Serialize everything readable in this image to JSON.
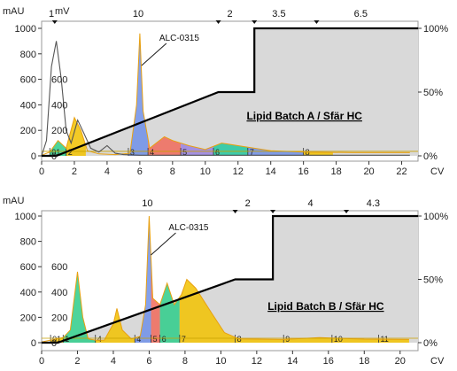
{
  "chart_data": [
    {
      "type": "area",
      "title": "Lipid Batch A / Sfär HC",
      "x_unit": "CV",
      "left_unit": "mAU",
      "left_ticks": [
        0,
        200,
        400,
        600,
        800,
        1000
      ],
      "mv_unit": "mV",
      "mv_ticks": [
        0,
        200,
        400,
        600
      ],
      "right_unit_ticks": [
        "0%",
        "50%",
        "100%"
      ],
      "x_ticks": [
        0,
        2,
        4,
        6,
        8,
        10,
        12,
        14,
        16,
        18,
        20,
        22
      ],
      "xlim": [
        0,
        23
      ],
      "ylim": [
        0,
        1000
      ],
      "top_labels": [
        {
          "text": "1",
          "x": 0.6
        },
        {
          "text": "10",
          "x": 5.9
        },
        {
          "text": "2",
          "x": 11.5
        },
        {
          "text": "3.5",
          "x": 14.5
        },
        {
          "text": "6.5",
          "x": 19.5
        }
      ],
      "top_markers": [
        0.8,
        10.8,
        13.0,
        16.8
      ],
      "peak_annotation": {
        "text": "ALC-0315",
        "x": 6.0
      },
      "gradient": [
        [
          0,
          0
        ],
        [
          0.9,
          0
        ],
        [
          10.8,
          50
        ],
        [
          13.0,
          50
        ],
        [
          13.0,
          100
        ],
        [
          23,
          100
        ]
      ],
      "fractions": [
        {
          "label": "01",
          "start": 0.5,
          "end": 1.5,
          "color": "#2ecc8a"
        },
        {
          "label": "2",
          "start": 1.5,
          "end": 2.7,
          "color": "#f2c200"
        },
        {
          "label": "3",
          "start": 5.3,
          "end": 6.5,
          "color": "#6f8fe8"
        },
        {
          "label": "4",
          "start": 6.5,
          "end": 8.5,
          "color": "#f06a5a"
        },
        {
          "label": "5",
          "start": 8.5,
          "end": 10.5,
          "color": "#9a82e2"
        },
        {
          "label": "6",
          "start": 10.5,
          "end": 12.6,
          "color": "#21c8a0"
        },
        {
          "label": "7",
          "start": 12.6,
          "end": 16.0,
          "color": "#6f8fe8"
        },
        {
          "label": "8",
          "start": 16.0,
          "end": 17.8,
          "color": "#f2c200"
        }
      ],
      "uv_trace": [
        [
          0,
          5
        ],
        [
          0.5,
          30
        ],
        [
          1.0,
          120
        ],
        [
          1.5,
          60
        ],
        [
          2.0,
          300
        ],
        [
          2.4,
          200
        ],
        [
          2.8,
          40
        ],
        [
          3.5,
          15
        ],
        [
          4.5,
          10
        ],
        [
          5.4,
          20
        ],
        [
          5.8,
          400
        ],
        [
          6.0,
          960
        ],
        [
          6.2,
          350
        ],
        [
          6.6,
          60
        ],
        [
          7.0,
          100
        ],
        [
          7.5,
          150
        ],
        [
          8.0,
          120
        ],
        [
          9.0,
          80
        ],
        [
          10.0,
          50
        ],
        [
          11.0,
          100
        ],
        [
          12.0,
          80
        ],
        [
          13.0,
          60
        ],
        [
          14.0,
          40
        ],
        [
          16.0,
          30
        ],
        [
          19.0,
          25
        ],
        [
          22.5,
          25
        ]
      ],
      "mv_trace": [
        [
          0,
          0
        ],
        [
          0.3,
          120
        ],
        [
          0.6,
          700
        ],
        [
          0.9,
          900
        ],
        [
          1.2,
          600
        ],
        [
          1.5,
          200
        ],
        [
          1.8,
          100
        ],
        [
          2.2,
          280
        ],
        [
          2.5,
          200
        ],
        [
          3.0,
          60
        ],
        [
          3.5,
          30
        ],
        [
          4.0,
          80
        ],
        [
          4.5,
          20
        ],
        [
          5.0,
          10
        ],
        [
          6.0,
          5
        ],
        [
          22.5,
          5
        ]
      ]
    },
    {
      "type": "area",
      "title": "Lipid Batch B / Sfär HC",
      "x_unit": "CV",
      "left_unit": "mAU",
      "left_ticks": [
        0,
        200,
        400,
        600,
        800,
        1000
      ],
      "mv_ticks": [
        0,
        200,
        400,
        600
      ],
      "right_unit_ticks": [
        "0%",
        "50%",
        "100%"
      ],
      "x_ticks": [
        0,
        2,
        4,
        6,
        8,
        10,
        12,
        14,
        16,
        18,
        20
      ],
      "xlim": [
        0,
        21
      ],
      "ylim": [
        0,
        1000
      ],
      "top_labels": [
        {
          "text": "10",
          "x": 5.9
        },
        {
          "text": "2",
          "x": 11.5
        },
        {
          "text": "4",
          "x": 15.0
        },
        {
          "text": "4.3",
          "x": 18.5
        }
      ],
      "top_markers": [
        10.8,
        12.9,
        17.0
      ],
      "peak_annotation": {
        "text": "ALC-0315",
        "x": 6.0
      },
      "gradient": [
        [
          0,
          0
        ],
        [
          0.9,
          0
        ],
        [
          10.8,
          50
        ],
        [
          12.9,
          50
        ],
        [
          12.9,
          100
        ],
        [
          21,
          100
        ]
      ],
      "fractions": [
        {
          "label": "01",
          "start": 0.5,
          "end": 1.2,
          "color": "#f2c200"
        },
        {
          "label": "1",
          "start": 1.2,
          "end": 3.0,
          "color": "#2ecc8a"
        },
        {
          "label": "4",
          "start": 3.0,
          "end": 5.2,
          "color": "#f2c200"
        },
        {
          "label": "4",
          "start": 5.2,
          "end": 6.1,
          "color": "#6f8fe8"
        },
        {
          "label": "5",
          "start": 6.1,
          "end": 6.6,
          "color": "#f06a5a"
        },
        {
          "label": "6",
          "start": 6.6,
          "end": 7.7,
          "color": "#2ecc8a"
        },
        {
          "label": "7",
          "start": 7.7,
          "end": 10.8,
          "color": "#f2c200"
        },
        {
          "label": "8",
          "start": 10.8,
          "end": 13.5,
          "color": "#f2c200"
        },
        {
          "label": "9",
          "start": 13.5,
          "end": 16.2,
          "color": "#f2c200"
        },
        {
          "label": "10",
          "start": 16.2,
          "end": 18.8,
          "color": "#f2c200"
        },
        {
          "label": "11",
          "start": 18.8,
          "end": 20.5,
          "color": "#f2c200"
        }
      ],
      "uv_trace": [
        [
          0,
          5
        ],
        [
          0.5,
          20
        ],
        [
          1.2,
          40
        ],
        [
          1.6,
          100
        ],
        [
          2.0,
          560
        ],
        [
          2.3,
          200
        ],
        [
          2.6,
          30
        ],
        [
          3.0,
          20
        ],
        [
          3.5,
          20
        ],
        [
          4.0,
          150
        ],
        [
          4.2,
          270
        ],
        [
          4.5,
          100
        ],
        [
          5.0,
          30
        ],
        [
          5.5,
          50
        ],
        [
          5.8,
          300
        ],
        [
          6.0,
          1000
        ],
        [
          6.2,
          350
        ],
        [
          6.6,
          300
        ],
        [
          7.0,
          470
        ],
        [
          7.4,
          300
        ],
        [
          7.8,
          380
        ],
        [
          8.1,
          500
        ],
        [
          8.6,
          430
        ],
        [
          9.5,
          230
        ],
        [
          10.2,
          80
        ],
        [
          11.0,
          30
        ],
        [
          13.5,
          25
        ],
        [
          15.5,
          40
        ],
        [
          16.5,
          35
        ],
        [
          18.0,
          28
        ],
        [
          20.5,
          25
        ]
      ]
    }
  ]
}
